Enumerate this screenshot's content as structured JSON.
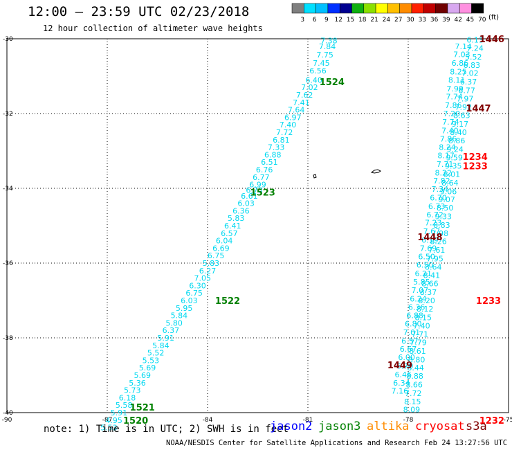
{
  "header": {
    "title": "12:00 – 23:59 UTC 02/23/2018",
    "subtitle": "12 hour collection of altimeter wave heights"
  },
  "scale": {
    "labels": [
      "3",
      "6",
      "9",
      "12",
      "15",
      "18",
      "21",
      "24",
      "27",
      "30",
      "33",
      "36",
      "39",
      "42",
      "45",
      "70"
    ],
    "unit": "(ft)",
    "colors": [
      "#7f7f7f",
      "#00e0ff",
      "#00bfff",
      "#0030ff",
      "#000090",
      "#10b010",
      "#8be000",
      "#ffff00",
      "#ffc000",
      "#ff8c00",
      "#ff2000",
      "#c00000",
      "#700000",
      "#d8a8f0",
      "#ff90e0",
      "#000000"
    ]
  },
  "footer": {
    "note": "note: 1) Time is in UTC; 2) SWH is in feet",
    "credit": "NOAA/NESDIS Center for Satellite Applications and Research   Feb 24 13:27:56 UTC 2018",
    "missions": [
      {
        "name": "jason2",
        "color": "#0000ff"
      },
      {
        "name": "jason3",
        "color": "#008000"
      },
      {
        "name": "altika",
        "color": "#ff8c00"
      },
      {
        "name": "cryosat",
        "color": "#ff0000"
      },
      {
        "name": "s3a",
        "color": "#800000"
      }
    ]
  },
  "chart_data": {
    "type": "scatter",
    "xlim": [
      -90,
      -75
    ],
    "ylim": [
      -40,
      -30
    ],
    "x_ticks": [
      "-90",
      "-87",
      "-84",
      "-81",
      "-78",
      "-75"
    ],
    "y_ticks": [
      "-30",
      "-32",
      "-34",
      "-36",
      "-38",
      "-40"
    ],
    "grid": true,
    "series": [
      {
        "name": "track-west",
        "color": "#00d8f0",
        "points": [
          [
            -80.37,
            -30.05,
            "7.38"
          ],
          [
            -80.42,
            -30.2,
            "7.84"
          ],
          [
            -80.49,
            -30.43,
            "7.75"
          ],
          [
            -80.6,
            -30.65,
            "7.45"
          ],
          [
            -80.7,
            -30.85,
            "6.56"
          ],
          [
            -80.82,
            -31.1,
            "6.40"
          ],
          [
            -80.95,
            -31.3,
            "7.02"
          ],
          [
            -81.1,
            -31.5,
            "7.62"
          ],
          [
            -81.2,
            -31.7,
            "7.41"
          ],
          [
            -81.35,
            -31.9,
            "7.64"
          ],
          [
            -81.45,
            -32.1,
            "6.97"
          ],
          [
            -81.6,
            -32.3,
            "7.40"
          ],
          [
            -81.7,
            -32.5,
            "7.72"
          ],
          [
            -81.8,
            -32.7,
            "6.81"
          ],
          [
            -81.95,
            -32.9,
            "7.33"
          ],
          [
            -82.05,
            -33.1,
            "6.88"
          ],
          [
            -82.15,
            -33.3,
            "6.51"
          ],
          [
            -82.3,
            -33.5,
            "6.76"
          ],
          [
            -82.4,
            -33.7,
            "6.77"
          ],
          [
            -82.5,
            -33.9,
            "6.99"
          ],
          [
            -82.6,
            -34.05,
            "6.73"
          ],
          [
            -82.75,
            -34.2,
            "6.61"
          ],
          [
            -82.85,
            -34.4,
            "6.03"
          ],
          [
            -83.0,
            -34.6,
            "6.36"
          ],
          [
            -83.15,
            -34.8,
            "5.83"
          ],
          [
            -83.25,
            -35.0,
            "6.41"
          ],
          [
            -83.35,
            -35.2,
            "6.57"
          ],
          [
            -83.5,
            -35.4,
            "6.04"
          ],
          [
            -83.6,
            -35.6,
            "6.69"
          ],
          [
            -83.75,
            -35.8,
            "6.75"
          ],
          [
            -83.9,
            -36.0,
            "5.83"
          ],
          [
            -84.0,
            -36.2,
            "6.27"
          ],
          [
            -84.15,
            -36.4,
            "7.05"
          ],
          [
            -84.3,
            -36.6,
            "6.30"
          ],
          [
            -84.4,
            -36.8,
            "6.75"
          ],
          [
            -84.55,
            -37.0,
            "6.03"
          ],
          [
            -84.7,
            -37.2,
            "5.95"
          ],
          [
            -84.85,
            -37.4,
            "5.84"
          ],
          [
            -85.0,
            -37.6,
            "5.80"
          ],
          [
            -85.1,
            -37.8,
            "6.37"
          ],
          [
            -85.25,
            -38.0,
            "5.91"
          ],
          [
            -85.4,
            -38.2,
            "5.84"
          ],
          [
            -85.55,
            -38.4,
            "5.52"
          ],
          [
            -85.7,
            -38.6,
            "5.53"
          ],
          [
            -85.8,
            -38.8,
            "5.69"
          ],
          [
            -85.95,
            -39.0,
            "5.69"
          ],
          [
            -86.1,
            -39.2,
            "5.36"
          ],
          [
            -86.25,
            -39.4,
            "5.73"
          ],
          [
            -86.4,
            -39.6,
            "6.18"
          ],
          [
            -86.5,
            -39.8,
            "5.58"
          ],
          [
            -86.65,
            -40.0,
            "5.91"
          ],
          [
            -86.8,
            -40.2,
            "4.95"
          ],
          [
            -86.95,
            -40.4,
            "5.53"
          ]
        ]
      },
      {
        "name": "track-middle",
        "color": "#00d8f0",
        "points": [
          [
            -76.35,
            -30.2,
            "7.14"
          ],
          [
            -76.4,
            -30.42,
            "7.03"
          ],
          [
            -76.45,
            -30.65,
            "6.86"
          ],
          [
            -76.5,
            -30.88,
            "8.25"
          ],
          [
            -76.55,
            -31.1,
            "8.11"
          ],
          [
            -76.6,
            -31.33,
            "7.99"
          ],
          [
            -76.62,
            -31.55,
            "7.74"
          ],
          [
            -76.65,
            -31.78,
            "7.86"
          ],
          [
            -76.7,
            -32.0,
            "7.20"
          ],
          [
            -76.73,
            -32.22,
            "7.74"
          ],
          [
            -76.75,
            -32.45,
            "7.40"
          ],
          [
            -76.8,
            -32.68,
            "7.86"
          ],
          [
            -76.83,
            -32.9,
            "8.24"
          ],
          [
            -76.87,
            -33.12,
            "8.17"
          ],
          [
            -76.9,
            -33.35,
            "7.71"
          ],
          [
            -76.95,
            -33.58,
            "8.22"
          ],
          [
            -77.0,
            -33.8,
            "7.82"
          ],
          [
            -77.05,
            -34.02,
            "7.34"
          ],
          [
            -77.1,
            -34.25,
            "6.70"
          ],
          [
            -77.15,
            -34.48,
            "6.73"
          ],
          [
            -77.2,
            -34.7,
            "6.72"
          ],
          [
            -77.25,
            -34.92,
            "7.23"
          ],
          [
            -77.3,
            -35.15,
            "7.67"
          ],
          [
            -77.35,
            -35.38,
            "6.19"
          ],
          [
            -77.4,
            -35.6,
            "7.69"
          ],
          [
            -77.45,
            -35.82,
            "6.50"
          ],
          [
            -77.5,
            -36.05,
            "6.50"
          ],
          [
            -77.55,
            -36.28,
            "6.21"
          ],
          [
            -77.6,
            -36.5,
            "5.85"
          ],
          [
            -77.65,
            -36.72,
            "7.07"
          ],
          [
            -77.7,
            -36.95,
            "6.24"
          ],
          [
            -77.75,
            -37.18,
            "6.36"
          ],
          [
            -77.8,
            -37.4,
            "6.88"
          ],
          [
            -77.85,
            -37.62,
            "6.80"
          ],
          [
            -77.9,
            -37.85,
            "7.01"
          ],
          [
            -77.95,
            -38.08,
            "6.57"
          ],
          [
            -78.0,
            -38.3,
            "6.67"
          ],
          [
            -78.05,
            -38.52,
            "6.00"
          ],
          [
            -78.1,
            -38.75,
            "6.70"
          ],
          [
            -78.15,
            -38.98,
            "6.46"
          ],
          [
            -78.2,
            -39.2,
            "6.34"
          ],
          [
            -78.25,
            -39.42,
            "7.16"
          ]
        ]
      },
      {
        "name": "track-east",
        "color": "#00d8f0",
        "points": [
          [
            -76.0,
            -30.03,
            "6.13"
          ],
          [
            -76.0,
            -30.25,
            "7.24"
          ],
          [
            -76.05,
            -30.48,
            "5.52"
          ],
          [
            -76.1,
            -30.7,
            "6.83"
          ],
          [
            -76.15,
            -30.92,
            "7.02"
          ],
          [
            -76.2,
            -31.15,
            "6.37"
          ],
          [
            -76.25,
            -31.38,
            "6.77"
          ],
          [
            -76.3,
            -31.6,
            "7.97"
          ],
          [
            -76.35,
            -31.82,
            "7.92"
          ],
          [
            -76.4,
            -32.05,
            "8.63"
          ],
          [
            -76.45,
            -32.28,
            "9.17"
          ],
          [
            -76.5,
            -32.5,
            "8.40"
          ],
          [
            -76.55,
            -32.72,
            "8.86"
          ],
          [
            -76.6,
            -32.95,
            "9.24"
          ],
          [
            -76.62,
            -33.18,
            "9.59"
          ],
          [
            -76.65,
            -33.4,
            "9.35"
          ],
          [
            -76.7,
            -33.62,
            "8.01"
          ],
          [
            -76.75,
            -33.85,
            "8.64"
          ],
          [
            -76.8,
            -34.08,
            "9.06"
          ],
          [
            -76.85,
            -34.3,
            "9.07"
          ],
          [
            -76.9,
            -34.52,
            "8.50"
          ],
          [
            -76.95,
            -34.75,
            "9.33"
          ],
          [
            -77.0,
            -34.98,
            "8.83"
          ],
          [
            -77.05,
            -35.2,
            "7.98"
          ],
          [
            -77.1,
            -35.42,
            "8.26"
          ],
          [
            -77.15,
            -35.65,
            "7.61"
          ],
          [
            -77.2,
            -35.88,
            "7.95"
          ],
          [
            -77.25,
            -36.1,
            "8.64"
          ],
          [
            -77.3,
            -36.32,
            "8.41"
          ],
          [
            -77.35,
            -36.55,
            "8.66"
          ],
          [
            -77.4,
            -36.78,
            "8.37"
          ],
          [
            -77.45,
            -37.0,
            "8.20"
          ],
          [
            -77.5,
            -37.22,
            "8.12"
          ],
          [
            -77.55,
            -37.45,
            "8.15"
          ],
          [
            -77.6,
            -37.68,
            "7.40"
          ],
          [
            -77.65,
            -37.9,
            "7.71"
          ],
          [
            -77.7,
            -38.12,
            "7.79"
          ],
          [
            -77.72,
            -38.35,
            "8.61"
          ],
          [
            -77.75,
            -38.58,
            "8.80"
          ],
          [
            -77.78,
            -38.8,
            "8.44"
          ],
          [
            -77.8,
            -39.02,
            "8.88"
          ],
          [
            -77.82,
            -39.25,
            "8.66"
          ],
          [
            -77.85,
            -39.48,
            "7.72"
          ],
          [
            -77.87,
            -39.7,
            "8.15"
          ],
          [
            -77.9,
            -39.92,
            "8.09"
          ]
        ]
      }
    ],
    "time_labels": [
      {
        "text": "1446",
        "x": -75.5,
        "y": -30.0,
        "color": "#800000"
      },
      {
        "text": "1447",
        "x": -75.9,
        "y": -31.85,
        "color": "#800000"
      },
      {
        "text": "1524",
        "x": -80.28,
        "y": -31.15,
        "color": "#008000"
      },
      {
        "text": "1234",
        "x": -76.0,
        "y": -33.15,
        "color": "#ff0000"
      },
      {
        "text": "1233",
        "x": -76.0,
        "y": -33.4,
        "color": "#ff0000"
      },
      {
        "text": "1523",
        "x": -82.35,
        "y": -34.1,
        "color": "#008000"
      },
      {
        "text": "1448",
        "x": -77.35,
        "y": -35.3,
        "color": "#800000"
      },
      {
        "text": "1233",
        "x": -75.6,
        "y": -37.0,
        "color": "#ff0000"
      },
      {
        "text": "1522",
        "x": -83.4,
        "y": -37.0,
        "color": "#008000"
      },
      {
        "text": "1449",
        "x": -78.25,
        "y": -38.72,
        "color": "#800000"
      },
      {
        "text": "1521",
        "x": -85.95,
        "y": -39.85,
        "color": "#008000"
      },
      {
        "text": "1520",
        "x": -86.15,
        "y": -40.2,
        "color": "#008000"
      },
      {
        "text": "1232",
        "x": -75.5,
        "y": -40.2,
        "color": "#ff0000"
      }
    ]
  }
}
